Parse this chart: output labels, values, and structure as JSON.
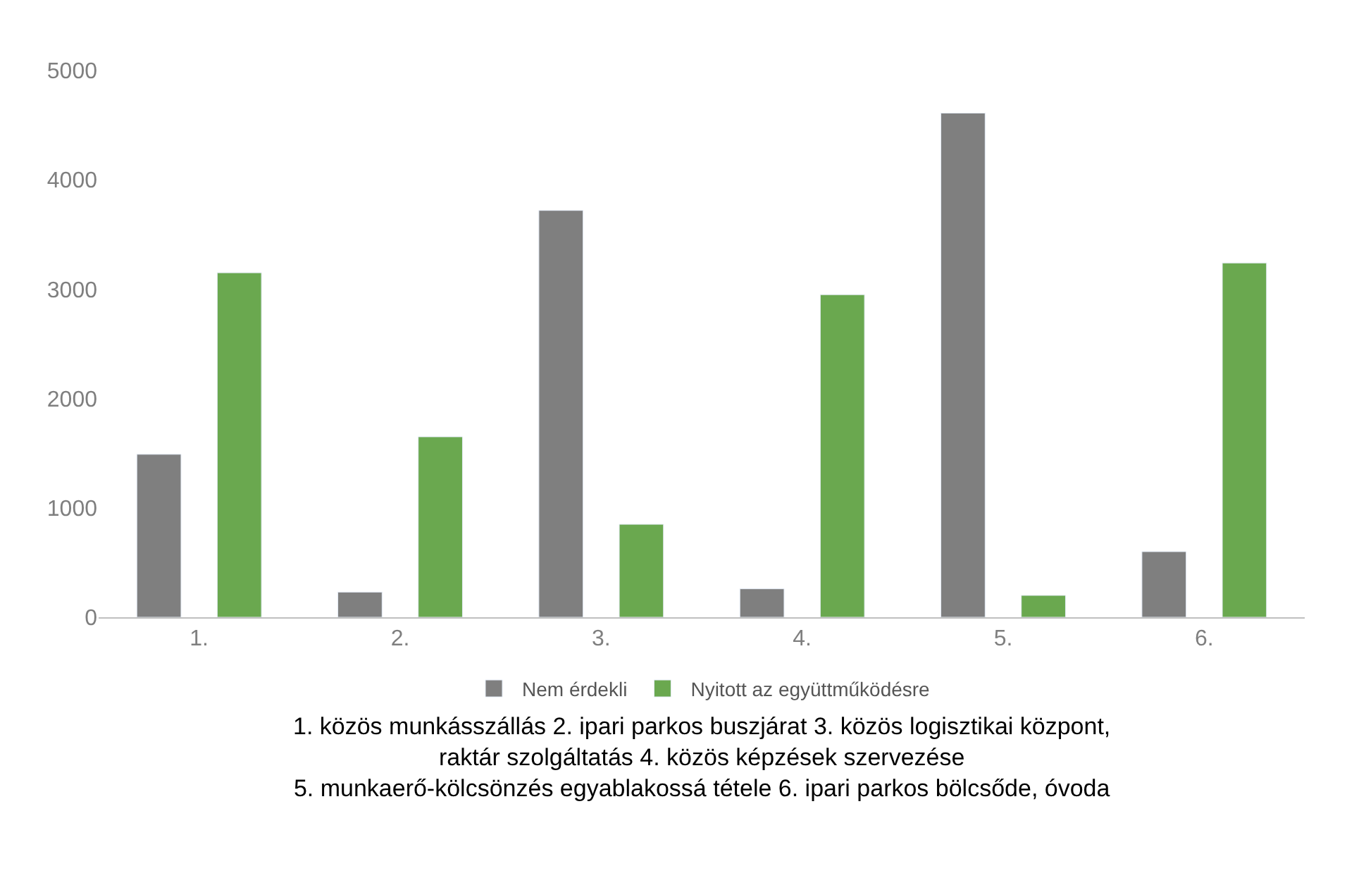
{
  "chart_data": {
    "type": "bar",
    "categories": [
      "1.",
      "2.",
      "3.",
      "4.",
      "5.",
      "6."
    ],
    "series": [
      {
        "name": "Nem érdekli",
        "color": "#7f7f7f",
        "values": [
          1490,
          230,
          3720,
          260,
          4610,
          600
        ]
      },
      {
        "name": "Nyitott az együttműködésre",
        "color": "#6aa84f",
        "values": [
          3150,
          1650,
          850,
          2950,
          200,
          3240
        ]
      }
    ],
    "ylim": [
      0,
      5000
    ],
    "yticks": [
      0,
      1000,
      2000,
      3000,
      4000,
      5000
    ],
    "legend": "bottom",
    "annotations": [
      "1. közös munkásszállás 2. ipari parkos buszjárat 3. közös logisztikai központ,\nraktár szolgáltatás 4. közös képzések szervezése\n5. munkaerő-kölcsönzés egyablakossá tétele 6. ipari parkos bölcsőde, óvoda"
    ]
  }
}
